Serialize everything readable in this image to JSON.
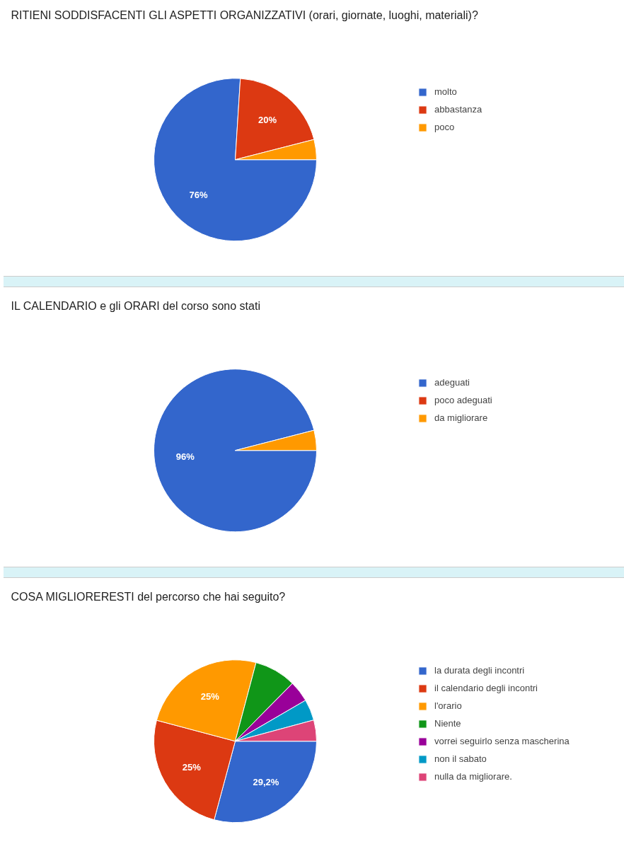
{
  "chart_data": [
    {
      "type": "pie",
      "title": "RITIENI SODDISFACENTI GLI ASPETTI ORGANIZZATIVI (orari, giornate, luoghi, materiali)?",
      "categories": [
        "molto",
        "abbastanza",
        "poco"
      ],
      "values": [
        76,
        20,
        4
      ],
      "colors": [
        "#3366cc",
        "#dc3912",
        "#ff9900"
      ],
      "value_labels": [
        "76%",
        "20%",
        null
      ],
      "legend": "right"
    },
    {
      "type": "pie",
      "title": "IL CALENDARIO e gli ORARI del corso sono stati",
      "categories": [
        "adeguati",
        "poco adeguati",
        "da migliorare"
      ],
      "values": [
        96,
        0,
        4
      ],
      "colors": [
        "#3366cc",
        "#dc3912",
        "#ff9900"
      ],
      "value_labels": [
        "96%",
        null,
        null
      ],
      "legend": "right"
    },
    {
      "type": "pie",
      "title": "COSA MIGLIORERESTI del percorso che hai seguito?",
      "categories": [
        "la durata degli incontri",
        "il calendario degli incontri",
        "l'orario",
        "Niente",
        "vorrei seguirlo senza mascherina",
        "non il sabato",
        "nulla da migliorare."
      ],
      "values": [
        29.2,
        25,
        25,
        8.3,
        4.2,
        4.2,
        4.2
      ],
      "colors": [
        "#3366cc",
        "#dc3912",
        "#ff9900",
        "#109618",
        "#990099",
        "#0099c6",
        "#dd4477"
      ],
      "value_labels": [
        "29,2%",
        "25%",
        "25%",
        null,
        null,
        null,
        null
      ],
      "legend": "right"
    }
  ]
}
